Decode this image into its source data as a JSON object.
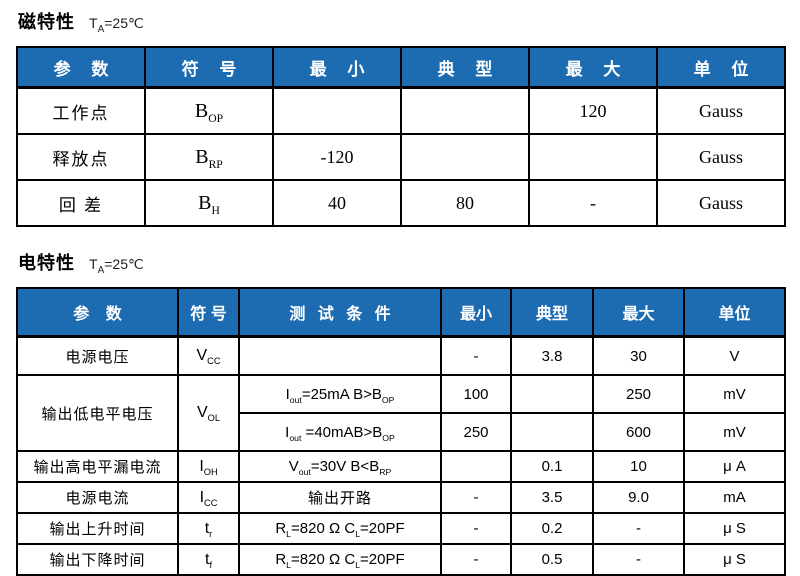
{
  "colors": {
    "header_bg": "#1d6bb1",
    "header_text": "#ffffff",
    "border": "#000000",
    "body_bg": "#ffffff"
  },
  "mag": {
    "title": "磁特性",
    "condition": [
      {
        "t": "T"
      },
      {
        "s": "A"
      },
      {
        "t": "=25℃"
      }
    ],
    "headers": [
      "参 数",
      "符 号",
      "最 小",
      "典 型",
      "最 大",
      "单 位"
    ],
    "rows": [
      {
        "param": "工作点",
        "symbol": [
          {
            "t": "B"
          },
          {
            "s": "OP"
          }
        ],
        "min": "",
        "typ": "",
        "max": "120",
        "unit": "Gauss"
      },
      {
        "param": "释放点",
        "symbol": [
          {
            "t": "B"
          },
          {
            "s": "RP"
          }
        ],
        "min": "-120",
        "typ": "",
        "max": "",
        "unit": "Gauss"
      },
      {
        "param": "回 差",
        "symbol": [
          {
            "t": "B"
          },
          {
            "s": "H"
          }
        ],
        "min": "40",
        "typ": "80",
        "max": "-",
        "unit": "Gauss"
      }
    ]
  },
  "elec": {
    "title": "电特性",
    "condition": [
      {
        "t": "T"
      },
      {
        "s": "A"
      },
      {
        "t": "=25℃"
      }
    ],
    "headers": [
      "参 数",
      "符 号",
      "测 试 条 件",
      "最小",
      "典型",
      "最大",
      "单位"
    ],
    "rows": [
      {
        "param": "电源电压",
        "symbol": [
          {
            "t": "V"
          },
          {
            "s": "CC"
          }
        ],
        "cond": [
          {
            "t": ""
          }
        ],
        "min": "-",
        "typ": "3.8",
        "max": "30",
        "unit": "V"
      },
      {
        "param": "输出低电平电压",
        "symbol": [
          {
            "t": "V"
          },
          {
            "s": "OL"
          }
        ],
        "cond": [
          {
            "t": "I"
          },
          {
            "s": "out"
          },
          {
            "t": "=25mA B>B"
          },
          {
            "s": "OP"
          }
        ],
        "min": "100",
        "typ": "",
        "max": "250",
        "unit": "mV"
      },
      {
        "cond": [
          {
            "t": "I"
          },
          {
            "s": "out"
          },
          {
            "t": " =40mAB>B"
          },
          {
            "s": "OP"
          }
        ],
        "min": "250",
        "typ": "",
        "max": "600",
        "unit": "mV"
      },
      {
        "param": "输出高电平漏电流",
        "symbol": [
          {
            "t": "I"
          },
          {
            "s": "OH"
          }
        ],
        "cond": [
          {
            "t": "V"
          },
          {
            "s": "out"
          },
          {
            "t": "=30V B<B"
          },
          {
            "s": "RP"
          }
        ],
        "min": "",
        "typ": "0.1",
        "max": "10",
        "unit": "μ A"
      },
      {
        "param": "电源电流",
        "symbol": [
          {
            "t": "I"
          },
          {
            "s": "CC"
          }
        ],
        "cond": [
          {
            "t": "输出开路"
          }
        ],
        "min": "-",
        "typ": "3.5",
        "max": "9.0",
        "unit": "mA"
      },
      {
        "param": "输出上升时间",
        "symbol": [
          {
            "t": "t"
          },
          {
            "s": "r"
          }
        ],
        "cond": [
          {
            "t": "R"
          },
          {
            "s": "L"
          },
          {
            "t": "=820 Ω  C"
          },
          {
            "s": "L"
          },
          {
            "t": "=20PF"
          }
        ],
        "min": "-",
        "typ": "0.2",
        "max": "-",
        "unit": "μ S"
      },
      {
        "param": "输出下降时间",
        "symbol": [
          {
            "t": "t"
          },
          {
            "s": "f"
          }
        ],
        "cond": [
          {
            "t": "R"
          },
          {
            "s": "L"
          },
          {
            "t": "=820 Ω  C"
          },
          {
            "s": "L"
          },
          {
            "t": "=20PF"
          }
        ],
        "min": "-",
        "typ": "0.5",
        "max": "-",
        "unit": "μ S"
      }
    ]
  }
}
